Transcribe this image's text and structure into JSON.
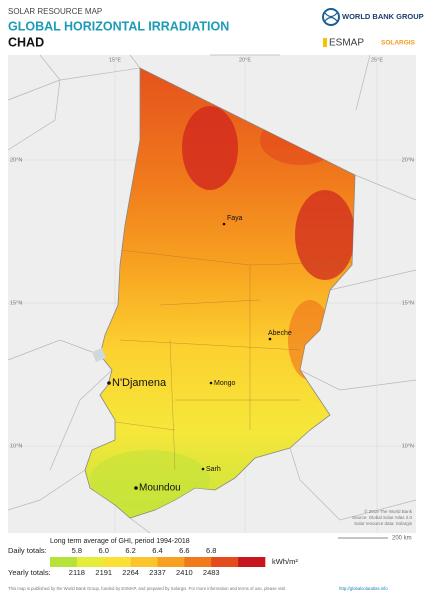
{
  "header": {
    "subtitle": "SOLAR RESOURCE MAP",
    "title": "GLOBAL HORIZONTAL IRRADIATION",
    "country": "CHAD"
  },
  "logos": {
    "world_bank": "WORLD BANK GROUP",
    "esmap": "ESMAP",
    "solargis": "SOLARGIS"
  },
  "map": {
    "grid_labels": {
      "lon": [
        "15°E",
        "20°E",
        "25°E"
      ],
      "lat": [
        "20°N",
        "15°N",
        "10°N"
      ]
    },
    "cities": [
      {
        "name": "Faya",
        "capital": false
      },
      {
        "name": "Abeche",
        "capital": false
      },
      {
        "name": "N'Djamena",
        "capital": true
      },
      {
        "name": "Mongo",
        "capital": false
      },
      {
        "name": "Sarh",
        "capital": false
      },
      {
        "name": "Moundou",
        "capital": false
      }
    ],
    "credits": [
      "© 2019 The World Bank",
      "Source: Global Solar Atlas 2.0",
      "Solar resource data: Solargis"
    ],
    "scale": "200 km"
  },
  "legend": {
    "title": "Long term average of GHI, period 1994-2018",
    "daily_label": "Daily totals:",
    "daily": [
      "5.8",
      "6.0",
      "6.2",
      "6.4",
      "6.6",
      "6.8"
    ],
    "unit": "kWh/m²",
    "yearly_label": "Yearly totals:",
    "yearly": [
      "2118",
      "2191",
      "2264",
      "2337",
      "2410",
      "2483"
    ],
    "colors": [
      "#b7e23a",
      "#e6ec3a",
      "#fbe035",
      "#fcc42c",
      "#f8a021",
      "#ef791c",
      "#e34c1c",
      "#c8161f"
    ]
  },
  "footer": {
    "text": "This map is published by the World Bank Group, funded by ESMAP, and prepared by Solargis. For more information and terms of use, please visit",
    "link": "http://globalsolaratlas.info"
  }
}
